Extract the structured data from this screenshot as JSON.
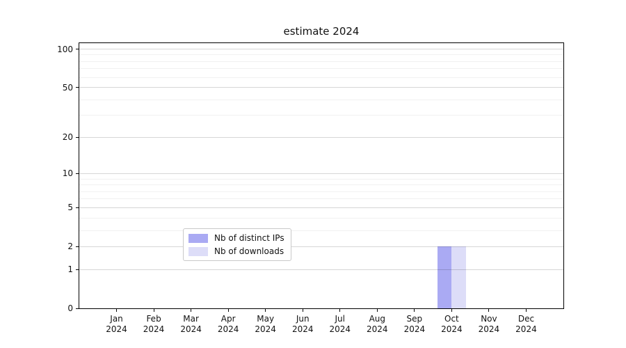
{
  "chart_data": {
    "type": "bar",
    "title": "estimate 2024",
    "categories": [
      {
        "month": "Jan",
        "year": "2024"
      },
      {
        "month": "Feb",
        "year": "2024"
      },
      {
        "month": "Mar",
        "year": "2024"
      },
      {
        "month": "Apr",
        "year": "2024"
      },
      {
        "month": "May",
        "year": "2024"
      },
      {
        "month": "Jun",
        "year": "2024"
      },
      {
        "month": "Jul",
        "year": "2024"
      },
      {
        "month": "Aug",
        "year": "2024"
      },
      {
        "month": "Sep",
        "year": "2024"
      },
      {
        "month": "Oct",
        "year": "2024"
      },
      {
        "month": "Nov",
        "year": "2024"
      },
      {
        "month": "Dec",
        "year": "2024"
      }
    ],
    "series": [
      {
        "name": "Nb of distinct IPs",
        "color": "#aaaaf3",
        "values": [
          0,
          0,
          0,
          0,
          0,
          0,
          0,
          0,
          0,
          2,
          0,
          0
        ]
      },
      {
        "name": "Nb of downloads",
        "color": "#ddddf8",
        "values": [
          0,
          0,
          0,
          0,
          0,
          0,
          0,
          0,
          0,
          2,
          0,
          0
        ]
      }
    ],
    "y_axis": {
      "scale": "log1p",
      "max": 100,
      "major_ticks": [
        0,
        1,
        2,
        5,
        10,
        20,
        50,
        100
      ],
      "minor_ticks": [
        3,
        4,
        6,
        7,
        8,
        9,
        30,
        40,
        60,
        70,
        80,
        90
      ]
    },
    "xlabel": "",
    "ylabel": "",
    "grid": "on",
    "legend_position": "lower-center",
    "colors": {
      "grid_major": "rgba(0,0,0,0.16)",
      "grid_minor": "rgba(0,0,0,0.055)",
      "axis": "#000000",
      "background": "#ffffff"
    }
  }
}
